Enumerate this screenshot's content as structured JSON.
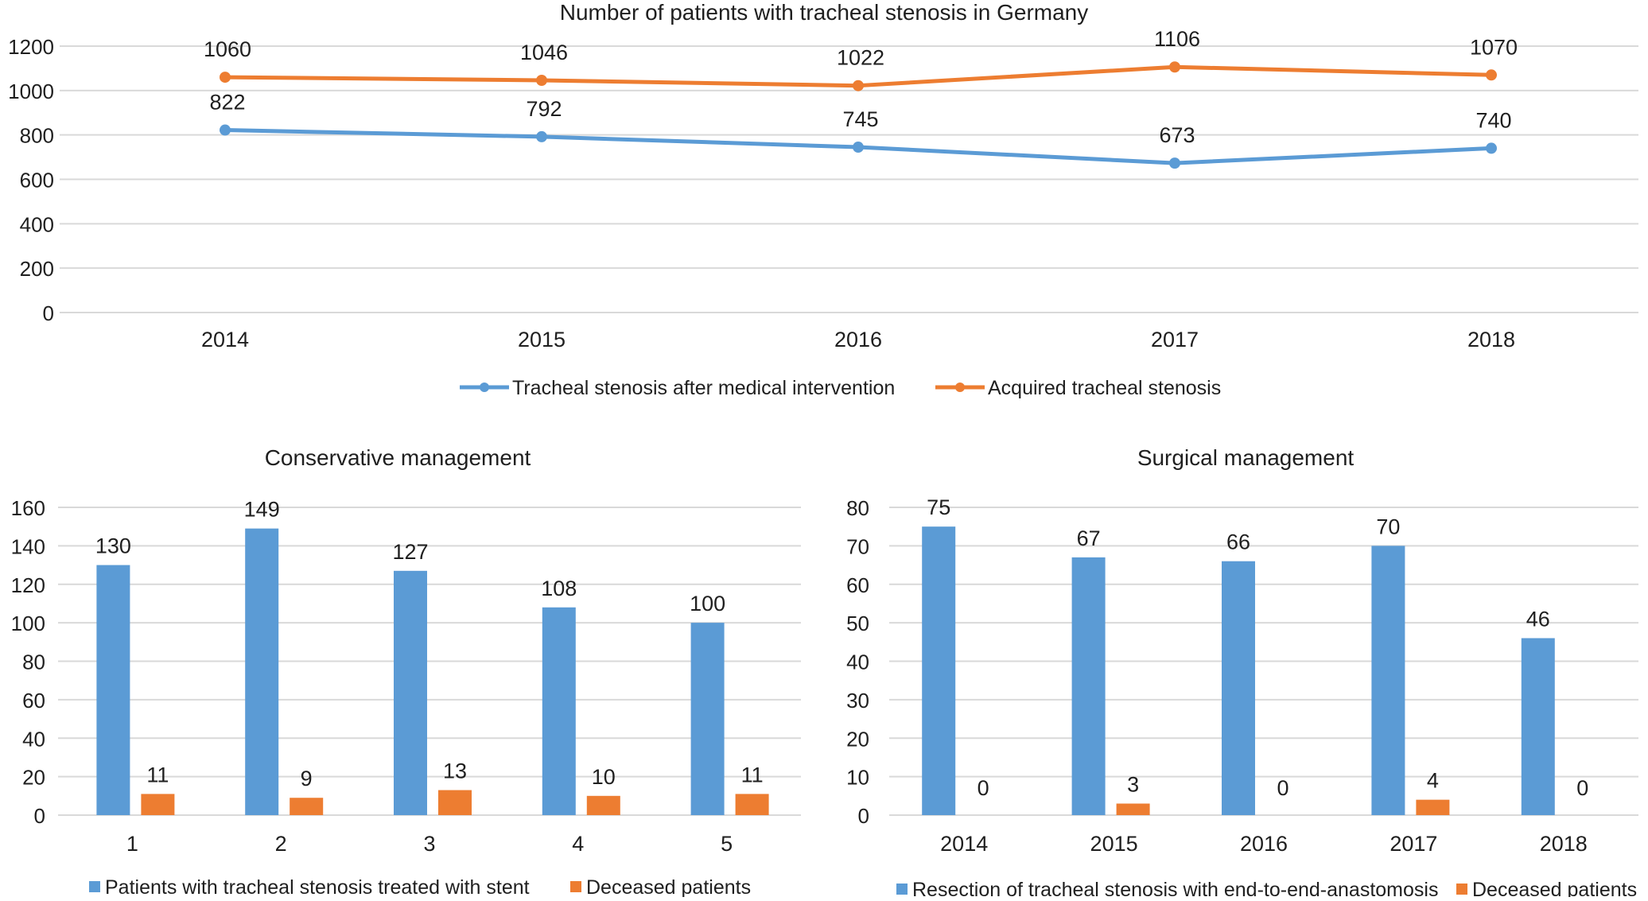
{
  "chart_data": [
    {
      "type": "line",
      "title": "Number of patients with tracheal stenosis in Germany",
      "xlabel": "",
      "ylabel": "",
      "categories": [
        "2014",
        "2015",
        "2016",
        "2017",
        "2018"
      ],
      "ylim": [
        0,
        1200
      ],
      "yticks": [
        "0",
        "200",
        "400",
        "600",
        "800",
        "1000",
        "1200"
      ],
      "grid": true,
      "legend_position": "bottom",
      "series": [
        {
          "name": "Tracheal stenosis after medical intervention",
          "color": "#5b9bd5",
          "values": [
            822,
            792,
            745,
            673,
            740
          ]
        },
        {
          "name": "Acquired tracheal stenosis",
          "color": "#ed7d31",
          "values": [
            1060,
            1046,
            1022,
            1106,
            1070
          ]
        }
      ]
    },
    {
      "type": "bar",
      "title": "Conservative management",
      "xlabel": "",
      "ylabel": "",
      "categories": [
        "1",
        "2",
        "3",
        "4",
        "5"
      ],
      "ylim": [
        0,
        160
      ],
      "yticks": [
        "0",
        "20",
        "40",
        "60",
        "80",
        "100",
        "120",
        "140",
        "160"
      ],
      "grid": true,
      "legend_position": "bottom",
      "series": [
        {
          "name": "Patients with tracheal stenosis treated with stent",
          "color": "#5b9bd5",
          "values": [
            130,
            149,
            127,
            108,
            100
          ]
        },
        {
          "name": "Deceased patients",
          "color": "#ed7d31",
          "values": [
            11,
            9,
            13,
            10,
            11
          ]
        }
      ]
    },
    {
      "type": "bar",
      "title": "Surgical management",
      "xlabel": "",
      "ylabel": "",
      "categories": [
        "2014",
        "2015",
        "2016",
        "2017",
        "2018"
      ],
      "ylim": [
        0,
        80
      ],
      "yticks": [
        "0",
        "10",
        "20",
        "30",
        "40",
        "50",
        "60",
        "70",
        "80"
      ],
      "grid": true,
      "legend_position": "bottom",
      "series": [
        {
          "name": "Resection of tracheal stenosis with end-to-end-anastomosis",
          "color": "#5b9bd5",
          "values": [
            75,
            67,
            66,
            70,
            46
          ]
        },
        {
          "name": "Deceased patients",
          "color": "#ed7d31",
          "values": [
            0,
            3,
            0,
            4,
            0
          ]
        }
      ]
    }
  ]
}
